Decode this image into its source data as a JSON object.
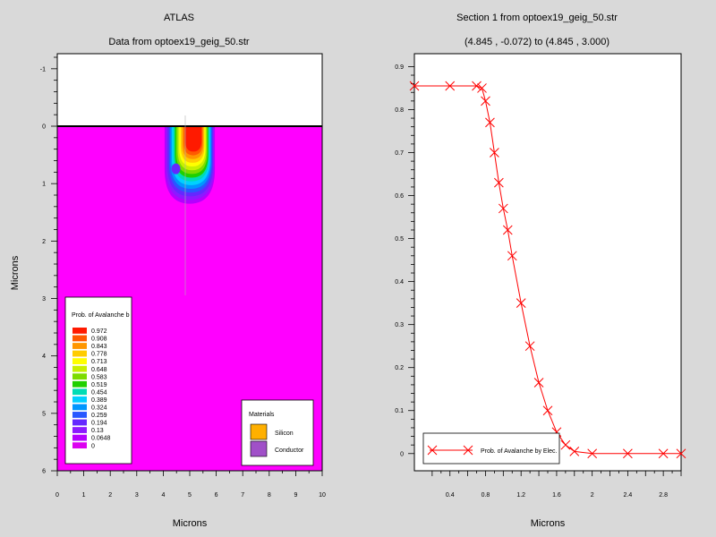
{
  "left_panel": {
    "title": "ATLAS",
    "subtitle": "Data from optoex19_geig_50.str",
    "xlabel": "Microns",
    "ylabel": "Microns",
    "x_ticks": [
      "0",
      "1",
      "2",
      "3",
      "4",
      "5",
      "6",
      "7",
      "8",
      "9",
      "10"
    ],
    "y_ticks": [
      "-1",
      "0",
      "1",
      "2",
      "3",
      "4",
      "5",
      "6"
    ],
    "legend_title": "Prob. of Avalanche b",
    "legend_levels": [
      "0.972",
      "0.908",
      "0.843",
      "0.778",
      "0.713",
      "0.648",
      "0.583",
      "0.519",
      "0.454",
      "0.389",
      "0.324",
      "0.259",
      "0.194",
      "0.13",
      "0.0648",
      "0"
    ],
    "legend_colors": [
      "#ff1a00",
      "#ff5a00",
      "#ff9600",
      "#ffcc00",
      "#ffff00",
      "#c8f000",
      "#7cdc00",
      "#20d000",
      "#00dcb4",
      "#00d0ff",
      "#0096ff",
      "#2858ff",
      "#6428ff",
      "#8c1aff",
      "#b400ff",
      "#dc00f0"
    ],
    "materials_title": "Materials",
    "materials": [
      {
        "name": "Silicon",
        "color": "#ffb000"
      },
      {
        "name": "Conductor",
        "color": "#a050c8"
      }
    ]
  },
  "chart_data": [
    {
      "type": "heatmap",
      "title": "ATLAS",
      "subtitle": "Data from optoex19_geig_50.str",
      "xlabel": "Microns",
      "ylabel": "Microns",
      "xlim": [
        0,
        10
      ],
      "ylim": [
        6,
        -1.3
      ],
      "surface_y": 0,
      "background_value": 0,
      "feature": {
        "description": "avalanche probability region",
        "x_center": 5.0,
        "x_half_width": 0.95,
        "depth_bottom": 1.35,
        "peak": 0.972
      }
    },
    {
      "type": "line",
      "title": "Section 1 from optoex19_geig_50.str",
      "subtitle": "(4.845 , -0.072) to (4.845 , 3.000)",
      "xlabel": "Microns",
      "ylabel": "",
      "xlim": [
        0,
        3.0
      ],
      "ylim": [
        -0.04,
        0.93
      ],
      "x_ticks": [
        "0.4",
        "0.8",
        "1.2",
        "1.6",
        "2",
        "2.4",
        "2.8"
      ],
      "y_ticks": [
        "0",
        "0.1",
        "0.2",
        "0.3",
        "0.4",
        "0.5",
        "0.6",
        "0.7",
        "0.8",
        "0.9"
      ],
      "series": [
        {
          "name": "Prob. of Avalanche by Elec.",
          "color": "#ff0000",
          "marker": "x",
          "x": [
            0.0,
            0.4,
            0.7,
            0.76,
            0.8,
            0.85,
            0.9,
            0.95,
            1.0,
            1.05,
            1.1,
            1.2,
            1.3,
            1.4,
            1.5,
            1.6,
            1.7,
            1.8,
            2.0,
            2.4,
            2.8,
            3.0
          ],
          "y": [
            0.855,
            0.855,
            0.855,
            0.85,
            0.82,
            0.77,
            0.7,
            0.63,
            0.57,
            0.52,
            0.46,
            0.35,
            0.25,
            0.165,
            0.1,
            0.05,
            0.02,
            0.005,
            0.0,
            0.0,
            0.0,
            0.0
          ]
        }
      ]
    }
  ]
}
